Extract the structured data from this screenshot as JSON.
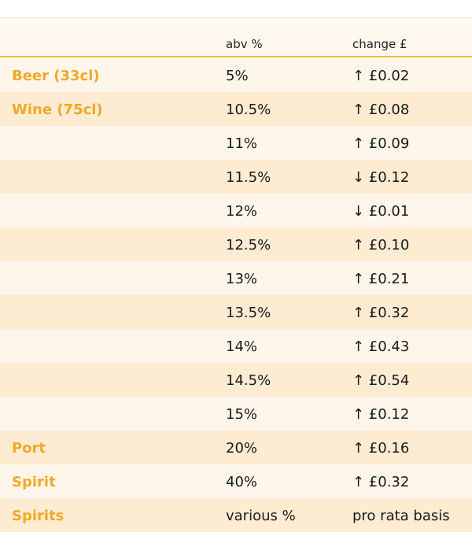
{
  "table": {
    "header": {
      "abv": "abv %",
      "change": "change £"
    },
    "rows": [
      {
        "label": "Beer (33cl)",
        "abv": "5%",
        "change": "↑ £0.02"
      },
      {
        "label": "Wine (75cl)",
        "abv": "10.5%",
        "change": "↑ £0.08"
      },
      {
        "abv": "11%",
        "change": "↑ £0.09"
      },
      {
        "abv": "11.5%",
        "change": "↓ £0.12"
      },
      {
        "abv": "12%",
        "change": "↓ £0.01"
      },
      {
        "abv": "12.5%",
        "change": "↑ £0.10"
      },
      {
        "abv": "13%",
        "change": "↑ £0.21"
      },
      {
        "abv": "13.5%",
        "change": "↑ £0.32"
      },
      {
        "abv": "14%",
        "change": "↑ £0.43"
      },
      {
        "abv": "14.5%",
        "change": "↑ £0.54"
      },
      {
        "abv": "15%",
        "change": "↑ £0.12"
      },
      {
        "label": "Port",
        "abv": "20%",
        "change": "↑ £0.16"
      },
      {
        "label": "Spirit",
        "abv": "40%",
        "change": "↑ £0.32"
      },
      {
        "label": "Spirits",
        "abv": "various %",
        "change": "pro rata basis"
      }
    ]
  }
}
